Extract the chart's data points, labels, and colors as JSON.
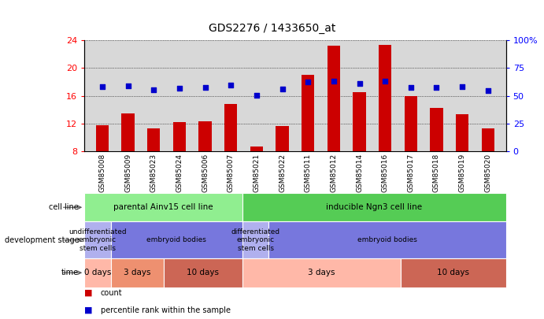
{
  "title": "GDS2276 / 1433650_at",
  "samples": [
    "GSM85008",
    "GSM85009",
    "GSM85023",
    "GSM85024",
    "GSM85006",
    "GSM85007",
    "GSM85021",
    "GSM85022",
    "GSM85011",
    "GSM85012",
    "GSM85014",
    "GSM85016",
    "GSM85017",
    "GSM85018",
    "GSM85019",
    "GSM85020"
  ],
  "bar_values": [
    11.8,
    13.5,
    11.3,
    12.2,
    12.3,
    14.8,
    8.7,
    11.6,
    19.0,
    23.2,
    16.5,
    23.3,
    15.9,
    14.2,
    13.3,
    11.3
  ],
  "dot_values": [
    17.3,
    17.4,
    16.9,
    17.1,
    17.2,
    17.5,
    16.1,
    17.0,
    18.0,
    18.1,
    17.7,
    18.1,
    17.2,
    17.2,
    17.3,
    16.7
  ],
  "ylim_left": [
    8,
    24
  ],
  "yticks_left": [
    8,
    12,
    16,
    20,
    24
  ],
  "ylim_right": [
    0,
    100
  ],
  "yticks_right": [
    0,
    25,
    50,
    75,
    100
  ],
  "bar_color": "#cc0000",
  "dot_color": "#0000cc",
  "background_color": "#ffffff",
  "plot_bg_color": "#d8d8d8",
  "cell_line_groups": [
    {
      "text": "parental Ainv15 cell line",
      "start": 0,
      "end": 6,
      "color": "#90ee90"
    },
    {
      "text": "inducible Ngn3 cell line",
      "start": 6,
      "end": 16,
      "color": "#55cc55"
    }
  ],
  "dev_stage_groups": [
    {
      "text": "undifferentiated\nembryonic\nstem cells",
      "start": 0,
      "end": 1,
      "color": "#b0b0ee"
    },
    {
      "text": "embryoid bodies",
      "start": 1,
      "end": 6,
      "color": "#7777dd"
    },
    {
      "text": "differentiated\nembryonic\nstem cells",
      "start": 6,
      "end": 7,
      "color": "#b0b0ee"
    },
    {
      "text": "embryoid bodies",
      "start": 7,
      "end": 16,
      "color": "#7777dd"
    }
  ],
  "time_groups": [
    {
      "text": "0 days",
      "start": 0,
      "end": 1,
      "color": "#ffb8a8"
    },
    {
      "text": "3 days",
      "start": 1,
      "end": 3,
      "color": "#ee9070"
    },
    {
      "text": "10 days",
      "start": 3,
      "end": 6,
      "color": "#cc6655"
    },
    {
      "text": "3 days",
      "start": 6,
      "end": 12,
      "color": "#ffb8a8"
    },
    {
      "text": "10 days",
      "start": 12,
      "end": 16,
      "color": "#cc6655"
    }
  ],
  "row_labels": [
    "cell line",
    "development stage",
    "time"
  ],
  "legend_items": [
    {
      "color": "#cc0000",
      "text": "count"
    },
    {
      "color": "#0000cc",
      "text": "percentile rank within the sample"
    }
  ]
}
